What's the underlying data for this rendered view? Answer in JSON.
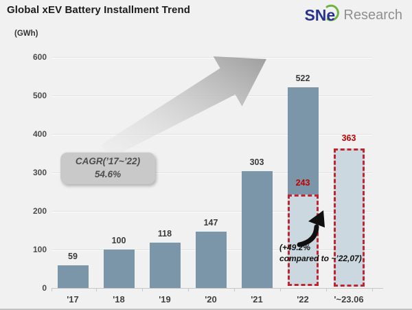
{
  "header": {
    "title": "Global xEV Battery Installment Trend",
    "logo_sn": "SN",
    "logo_e": "e",
    "logo_research": "Research"
  },
  "chart_data": {
    "type": "bar",
    "title": "Global xEV Battery Installment Trend",
    "unit_label": "(GWh)",
    "xlabel": "",
    "ylabel": "GWh",
    "ylim": [
      0,
      600
    ],
    "yticks": [
      0,
      100,
      200,
      300,
      400,
      500,
      600
    ],
    "grid": true,
    "legend": "none",
    "categories": [
      "'17",
      "'18",
      "'19",
      "'20",
      "'21",
      "'22",
      "'~23.06"
    ],
    "values": [
      59,
      100,
      118,
      147,
      303,
      522,
      363
    ],
    "bars": [
      {
        "label": "'17",
        "value": 59,
        "style": "solid"
      },
      {
        "label": "'18",
        "value": 100,
        "style": "solid"
      },
      {
        "label": "'19",
        "value": 118,
        "style": "solid"
      },
      {
        "label": "'20",
        "value": 147,
        "style": "solid"
      },
      {
        "label": "'21",
        "value": 303,
        "style": "solid"
      },
      {
        "label": "'22",
        "value": 522,
        "style": "split",
        "split_value": 243
      },
      {
        "label": "'~23.06",
        "value": 363,
        "style": "outline"
      }
    ],
    "annotations": {
      "cagr_line1": "CAGR(’17~’22)",
      "cagr_line2": "54.6%",
      "comparison_line1": "(+49.2%",
      "comparison_line2": "compared to ~’22,07)"
    },
    "colors": {
      "bar_solid": "#7c96a9",
      "bar_light_fill": "#ccd8e0",
      "dashed_border": "#c22330",
      "highlight_text": "#c00000",
      "label_text": "#3a3a3a",
      "background": "#f1f1f2",
      "logo_blue": "#27348b",
      "logo_green": "#6cb33f"
    }
  }
}
